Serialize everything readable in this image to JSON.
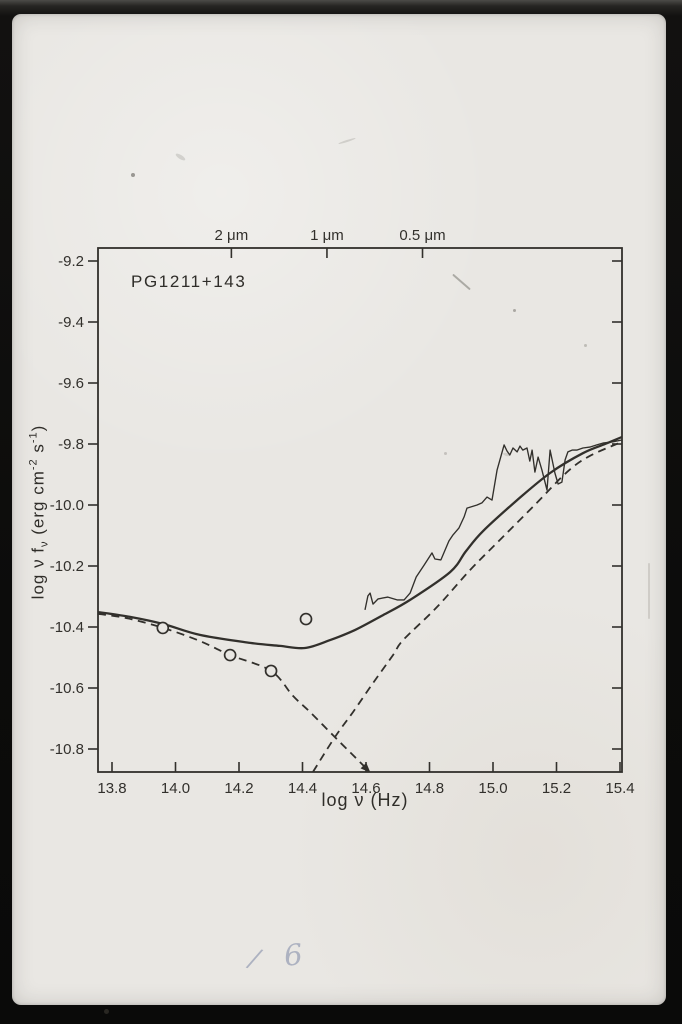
{
  "title": "PG1211+143",
  "colors": {
    "ink": "#32302c",
    "paper": "#e9e7e3",
    "border": "#0c0c0b",
    "handwriting": "#64728f"
  },
  "handwriting": {
    "mark1": "/",
    "mark2": "6"
  },
  "chart_data": {
    "type": "line",
    "title": "PG1211+143",
    "xlabel": "log ν (Hz)",
    "ylabel": "log ν fν (erg cm⁻² s⁻¹)",
    "ylabel_parts": {
      "pre": "log ν f",
      "sub": "ν",
      "mid": " (erg cm",
      "sup1": "-2",
      "mid2": " s",
      "sup2": "-1",
      "post": ")"
    },
    "xlim": [
      13.755,
      15.405
    ],
    "ylim": [
      -10.875,
      -9.157
    ],
    "grid": false,
    "x_ticks": [
      {
        "v": 13.8,
        "label": "13.8"
      },
      {
        "v": 14.0,
        "label": "14.0"
      },
      {
        "v": 14.2,
        "label": "14.2"
      },
      {
        "v": 14.4,
        "label": "14.4"
      },
      {
        "v": 14.6,
        "label": "14.6"
      },
      {
        "v": 14.8,
        "label": "14.8"
      },
      {
        "v": 15.0,
        "label": "15.0"
      },
      {
        "v": 15.2,
        "label": "15.2"
      },
      {
        "v": 15.4,
        "label": "15.4"
      }
    ],
    "y_ticks": [
      {
        "v": -9.2,
        "label": "-9.2"
      },
      {
        "v": -9.4,
        "label": "-9.4"
      },
      {
        "v": -9.6,
        "label": "-9.6"
      },
      {
        "v": -9.8,
        "label": "-9.8"
      },
      {
        "v": -10.0,
        "label": "-10.0"
      },
      {
        "v": -10.2,
        "label": "-10.2"
      },
      {
        "v": -10.4,
        "label": "-10.4"
      },
      {
        "v": -10.6,
        "label": "-10.6"
      },
      {
        "v": -10.8,
        "label": "-10.8"
      }
    ],
    "top_ticks": [
      {
        "v": 14.176,
        "label": "2 μm"
      },
      {
        "v": 14.477,
        "label": "1 μm"
      },
      {
        "v": 14.778,
        "label": "0.5 μm"
      }
    ],
    "series": [
      {
        "name": "total-model",
        "style": "solid",
        "points": [
          [
            13.756,
            -10.351
          ],
          [
            13.857,
            -10.367
          ],
          [
            13.961,
            -10.39
          ],
          [
            14.077,
            -10.426
          ],
          [
            14.235,
            -10.452
          ],
          [
            14.329,
            -10.462
          ],
          [
            14.408,
            -10.469
          ],
          [
            14.487,
            -10.443
          ],
          [
            14.565,
            -10.41
          ],
          [
            14.654,
            -10.361
          ],
          [
            14.739,
            -10.311
          ],
          [
            14.865,
            -10.22
          ],
          [
            14.915,
            -10.151
          ],
          [
            14.969,
            -10.085
          ],
          [
            15.076,
            -9.984
          ],
          [
            15.18,
            -9.895
          ],
          [
            15.283,
            -9.83
          ],
          [
            15.353,
            -9.8
          ],
          [
            15.406,
            -9.777
          ]
        ]
      },
      {
        "name": "infrared-component",
        "style": "dashed",
        "arrow_end": true,
        "points": [
          [
            13.756,
            -10.357
          ],
          [
            13.847,
            -10.371
          ],
          [
            13.961,
            -10.403
          ],
          [
            14.077,
            -10.446
          ],
          [
            14.172,
            -10.492
          ],
          [
            14.301,
            -10.544
          ],
          [
            14.37,
            -10.626
          ],
          [
            14.424,
            -10.679
          ],
          [
            14.502,
            -10.761
          ],
          [
            14.559,
            -10.82
          ],
          [
            14.603,
            -10.866
          ]
        ]
      },
      {
        "name": "ultraviolet-component",
        "style": "dashed",
        "arrow_end": false,
        "points": [
          [
            14.433,
            -10.875
          ],
          [
            14.502,
            -10.761
          ],
          [
            14.559,
            -10.679
          ],
          [
            14.622,
            -10.584
          ],
          [
            14.685,
            -10.492
          ],
          [
            14.717,
            -10.443
          ],
          [
            14.824,
            -10.334
          ],
          [
            14.928,
            -10.213
          ],
          [
            15.031,
            -10.105
          ],
          [
            15.138,
            -9.993
          ],
          [
            15.233,
            -9.892
          ],
          [
            15.305,
            -9.839
          ],
          [
            15.406,
            -9.793
          ]
        ]
      },
      {
        "name": "observed-spectrum",
        "style": "jagged",
        "points": [
          [
            14.597,
            -10.344
          ],
          [
            14.606,
            -10.298
          ],
          [
            14.613,
            -10.289
          ],
          [
            14.622,
            -10.325
          ],
          [
            14.638,
            -10.308
          ],
          [
            14.669,
            -10.302
          ],
          [
            14.698,
            -10.311
          ],
          [
            14.72,
            -10.311
          ],
          [
            14.739,
            -10.289
          ],
          [
            14.758,
            -10.236
          ],
          [
            14.783,
            -10.197
          ],
          [
            14.808,
            -10.157
          ],
          [
            14.817,
            -10.177
          ],
          [
            14.836,
            -10.18
          ],
          [
            14.861,
            -10.118
          ],
          [
            14.874,
            -10.098
          ],
          [
            14.893,
            -10.075
          ],
          [
            14.909,
            -10.039
          ],
          [
            14.918,
            -10.01
          ],
          [
            14.95,
            -10.0
          ],
          [
            14.965,
            -9.993
          ],
          [
            14.981,
            -9.974
          ],
          [
            14.997,
            -9.984
          ],
          [
            15.013,
            -9.885
          ],
          [
            15.035,
            -9.803
          ],
          [
            15.044,
            -9.823
          ],
          [
            15.053,
            -9.836
          ],
          [
            15.063,
            -9.813
          ],
          [
            15.076,
            -9.826
          ],
          [
            15.085,
            -9.807
          ],
          [
            15.094,
            -9.82
          ],
          [
            15.107,
            -9.813
          ],
          [
            15.116,
            -9.856
          ],
          [
            15.123,
            -9.82
          ],
          [
            15.132,
            -9.892
          ],
          [
            15.142,
            -9.843
          ],
          [
            15.154,
            -9.885
          ],
          [
            15.17,
            -9.951
          ],
          [
            15.18,
            -9.82
          ],
          [
            15.195,
            -9.895
          ],
          [
            15.205,
            -9.931
          ],
          [
            15.217,
            -9.925
          ],
          [
            15.227,
            -9.852
          ],
          [
            15.236,
            -9.826
          ],
          [
            15.249,
            -9.82
          ],
          [
            15.264,
            -9.82
          ],
          [
            15.283,
            -9.813
          ],
          [
            15.305,
            -9.81
          ],
          [
            15.327,
            -9.803
          ],
          [
            15.346,
            -9.797
          ],
          [
            15.375,
            -9.793
          ],
          [
            15.406,
            -9.787
          ]
        ]
      },
      {
        "name": "photometry-points",
        "style": "circles",
        "points": [
          [
            13.96,
            -10.403
          ],
          [
            14.172,
            -10.492
          ],
          [
            14.301,
            -10.544
          ],
          [
            14.411,
            -10.374
          ]
        ]
      }
    ]
  }
}
